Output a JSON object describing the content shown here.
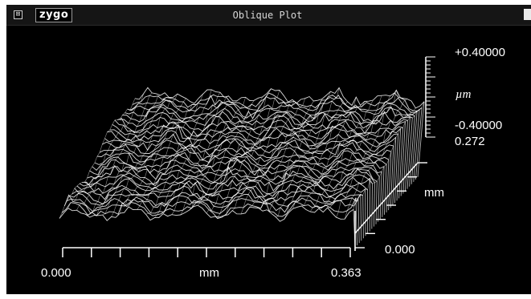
{
  "window": {
    "title": "Oblique Plot",
    "brand": "zygo",
    "close_glyph": "⊠"
  },
  "plot": {
    "x_axis": {
      "min_label": "0.000",
      "max_label": "0.363",
      "unit": "mm",
      "range": [
        0.0,
        0.363
      ]
    },
    "y_axis": {
      "min_label": "0.000",
      "max_label": "0.272",
      "unit": "mm",
      "range": [
        0.0,
        0.272
      ]
    },
    "z_scale": {
      "max_label": "+0.40000",
      "min_label": "-0.40000",
      "unit": "µm",
      "range": [
        -0.4,
        0.4
      ]
    }
  },
  "colors": {
    "window_background": "#000000",
    "title_bar": "#151515",
    "wireframe": "#ffffff"
  }
}
